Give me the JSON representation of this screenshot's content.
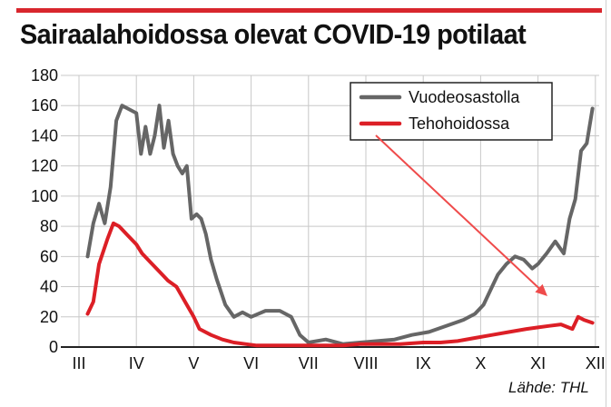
{
  "title": "Sairaalahoidossa olevat COVID-19 potilaat",
  "source": "Lähde: THL",
  "colors": {
    "accent_bar": "#d8262d",
    "series_grey": "#666666",
    "series_red": "#dc1f26",
    "grid": "#c8c8c8",
    "arrow": "#ef4b4b"
  },
  "chart_data": {
    "type": "line",
    "ylim": [
      0,
      180
    ],
    "yticks": [
      0,
      20,
      40,
      60,
      80,
      100,
      120,
      140,
      160,
      180
    ],
    "months": [
      "III",
      "IV",
      "V",
      "VI",
      "VII",
      "VIII",
      "IX",
      "X",
      "XI",
      "XII"
    ],
    "xlabel": "",
    "ylabel": "",
    "grid": true,
    "legend_position": "top-right",
    "annotation": "arrow from legend pointing to latest Tehohoidossa value",
    "series": [
      {
        "name": "Vuodeosastolla",
        "color": "#666666",
        "x": [
          0.15,
          0.25,
          0.35,
          0.45,
          0.55,
          0.65,
          0.75,
          0.85,
          1.0,
          1.08,
          1.16,
          1.24,
          1.32,
          1.4,
          1.48,
          1.56,
          1.64,
          1.72,
          1.8,
          1.88,
          1.96,
          2.05,
          2.13,
          2.21,
          2.3,
          2.4,
          2.55,
          2.7,
          2.85,
          3.0,
          3.25,
          3.5,
          3.7,
          3.85,
          4.0,
          4.3,
          4.6,
          4.9,
          5.2,
          5.5,
          5.8,
          6.1,
          6.4,
          6.7,
          6.9,
          7.05,
          7.2,
          7.3,
          7.45,
          7.6,
          7.75,
          7.9,
          8.0,
          8.15,
          8.3,
          8.45,
          8.55,
          8.65,
          8.75,
          8.85,
          8.95
        ],
        "values": [
          60,
          82,
          95,
          82,
          106,
          150,
          160,
          158,
          155,
          128,
          146,
          128,
          140,
          160,
          132,
          150,
          128,
          120,
          115,
          120,
          85,
          88,
          85,
          75,
          58,
          45,
          28,
          20,
          23,
          20,
          24,
          24,
          20,
          8,
          3,
          5,
          2,
          3,
          4,
          5,
          8,
          10,
          14,
          18,
          22,
          28,
          40,
          48,
          55,
          60,
          58,
          52,
          55,
          62,
          70,
          62,
          85,
          98,
          130,
          135,
          158
        ]
      },
      {
        "name": "Tehohoidossa",
        "color": "#dc1f26",
        "x": [
          0.15,
          0.25,
          0.35,
          0.5,
          0.6,
          0.7,
          0.85,
          1.0,
          1.1,
          1.25,
          1.4,
          1.55,
          1.7,
          1.85,
          2.0,
          2.1,
          2.3,
          2.5,
          2.7,
          2.9,
          3.1,
          3.4,
          3.7,
          4.0,
          4.3,
          4.6,
          4.9,
          5.2,
          5.6,
          6.0,
          6.3,
          6.6,
          6.9,
          7.2,
          7.5,
          7.8,
          8.0,
          8.2,
          8.4,
          8.6,
          8.7,
          8.8,
          8.95
        ],
        "values": [
          22,
          30,
          55,
          72,
          82,
          80,
          74,
          68,
          62,
          56,
          50,
          44,
          40,
          30,
          20,
          12,
          8,
          5,
          3,
          2,
          1,
          1,
          1,
          1,
          1,
          1,
          2,
          2,
          2,
          3,
          3,
          4,
          6,
          8,
          10,
          12,
          13,
          14,
          15,
          12,
          20,
          18,
          16
        ]
      }
    ]
  }
}
